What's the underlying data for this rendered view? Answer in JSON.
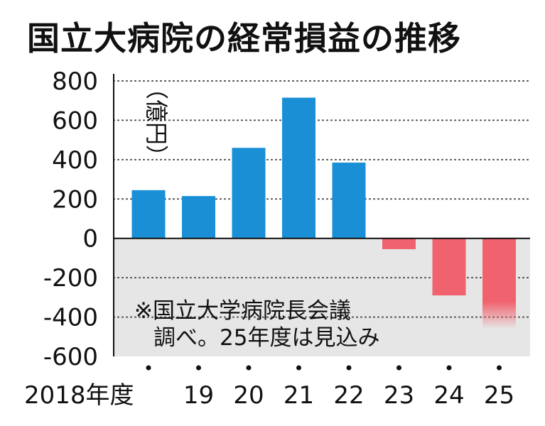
{
  "chart_data": {
    "type": "bar",
    "title": "国立大病院の経常損益の推移",
    "unit": "（億円）",
    "categories": [
      "2018年度",
      "19",
      "20",
      "21",
      "22",
      "23",
      "24",
      "25"
    ],
    "values": [
      245,
      215,
      460,
      715,
      385,
      -55,
      -290,
      -460
    ],
    "yticks": [
      "800",
      "600",
      "400",
      "200",
      "0",
      "-200",
      "-400",
      "-600"
    ],
    "ylim": [
      -600,
      800
    ],
    "note": [
      "※国立大学病院長会議",
      "調べ。25年度は見込み"
    ],
    "grid": "dotted horizontal",
    "colors": {
      "positive": "#1a8fd6",
      "negative": "#f0636e",
      "negative_area": "#e6e6e6",
      "forecast_fade": "#ffffff"
    }
  }
}
